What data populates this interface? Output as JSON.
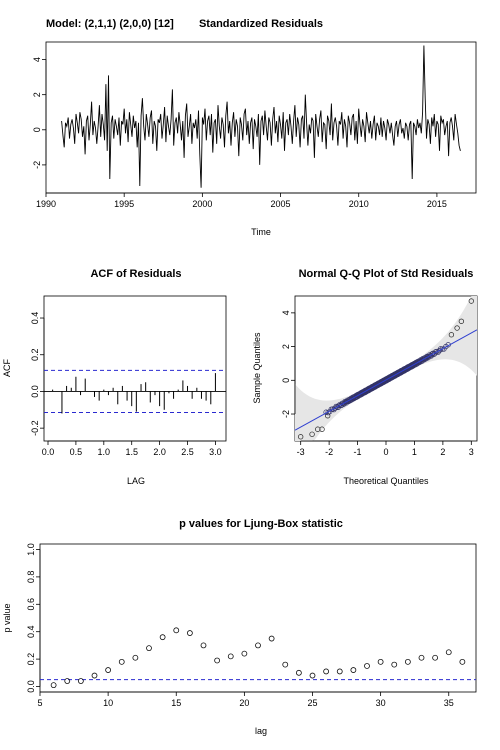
{
  "chart_data": [
    {
      "type": "line",
      "title": "Standardized Residuals",
      "model_label": "Model: (2,1,1) (2,0,0) [12]",
      "xlabel": "Time",
      "ylabel": "",
      "xlim": [
        1990,
        2017.5
      ],
      "ylim": [
        -3.6,
        5.0
      ],
      "x_ticks": [
        1990,
        1995,
        2000,
        2005,
        2010,
        2015
      ],
      "y_ticks": [
        -2,
        0,
        2,
        4
      ],
      "series": [
        {
          "x_start": 1991.0,
          "x_step": 0.083333,
          "values": [
            0.5,
            -0.3,
            -1.0,
            0.4,
            0.2,
            0.7,
            -0.5,
            0.3,
            0.6,
            0.1,
            -0.8,
            0.9,
            0.4,
            -0.2,
            1.0,
            0.6,
            -0.4,
            0.2,
            -1.4,
            0.5,
            0.8,
            -0.6,
            0.3,
            1.6,
            -0.3,
            0.5,
            0.1,
            -0.8,
            0.2,
            1.4,
            -0.4,
            0.9,
            0.3,
            -0.6,
            2.6,
            -1.2,
            3.1,
            -2.8,
            0.4,
            0.8,
            -0.5,
            0.6,
            0.2,
            -0.3,
            0.7,
            -0.9,
            0.5,
            0.3,
            1.2,
            -0.2,
            0.6,
            -0.7,
            1.0,
            0.3,
            -0.4,
            0.8,
            0.1,
            0.5,
            -1.0,
            0.4,
            -3.2,
            0.8,
            1.8,
            0.2,
            -0.6,
            0.9,
            0.3,
            -0.4,
            0.7,
            1.1,
            -0.8,
            0.5,
            0.2,
            -1.2,
            0.6,
            0.4,
            0.9,
            -0.5,
            0.3,
            1.3,
            -0.7,
            0.8,
            0.2,
            -0.3,
            0.6,
            2.3,
            -0.9,
            0.4,
            0.7,
            -0.2,
            1.0,
            0.3,
            -0.6,
            0.5,
            -1.6,
            0.8,
            1.5,
            -0.4,
            0.2,
            0.9,
            -0.8,
            0.4,
            0.1,
            0.6,
            -0.5,
            1.1,
            -1.4,
            -3.3,
            0.7,
            0.3,
            1.2,
            -0.6,
            0.5,
            0.8,
            -0.3,
            0.9,
            -1.3,
            0.4,
            0.6,
            -0.8,
            1.4,
            0.2,
            -0.5,
            0.7,
            0.3,
            -1.0,
            0.8,
            1.6,
            -0.2,
            0.5,
            -0.9,
            0.4,
            1.0,
            -0.4,
            0.6,
            0.2,
            -1.5,
            0.7,
            0.3,
            -0.6,
            0.9,
            1.2,
            -0.3,
            0.5,
            -0.8,
            0.4,
            0.7,
            -1.1,
            0.6,
            0.2,
            -0.4,
            0.9,
            -2.0,
            0.5,
            0.8,
            -0.3,
            1.1,
            0.2,
            -0.6,
            0.7,
            0.4,
            -0.9,
            0.6,
            1.3,
            -0.2,
            0.5,
            -0.7,
            0.8,
            0.3,
            -0.5,
            1.0,
            -1.2,
            0.4,
            0.6,
            -0.3,
            0.9,
            0.2,
            -0.8,
            0.5,
            1.4,
            -0.4,
            0.7,
            0.3,
            -1.0,
            0.6,
            0.8,
            -0.5,
            2.0,
            0.4,
            -0.9,
            0.3,
            -0.2,
            0.7,
            0.5,
            -1.6,
            0.9,
            0.2,
            -0.4,
            0.6,
            1.1,
            -0.7,
            0.4,
            0.3,
            -1.1,
            0.8,
            0.5,
            -0.3,
            1.5,
            -0.6,
            0.4,
            0.7,
            0.2,
            -0.9,
            0.5,
            0.3,
            1.0,
            -0.5,
            0.6,
            0.2,
            -1.0,
            0.8,
            0.4,
            -0.3,
            0.7,
            0.9,
            -0.6,
            0.5,
            -0.8,
            1.2,
            0.3,
            -0.4,
            0.6,
            0.2,
            -0.7,
            1.0,
            0.4,
            -0.2,
            0.5,
            -0.5,
            0.3,
            0.8,
            -0.6,
            0.4,
            0.2,
            -0.3,
            0.7,
            -0.4,
            0.5,
            0.1,
            -0.6,
            0.6,
            0.3,
            -0.2,
            0.4,
            -0.3,
            -0.9,
            0.2,
            0.5,
            -0.4,
            0.3,
            0.6,
            -0.2,
            0.1,
            -0.5,
            0.4,
            0.2,
            -0.6,
            0.3,
            0.5,
            -2.8,
            0.4,
            0.2,
            -0.3,
            0.6,
            0.1,
            0.4,
            -0.2,
            1.0,
            4.8,
            1.8,
            -0.5,
            0.6,
            0.3,
            -0.8,
            0.7,
            0.2,
            0.9,
            -0.4,
            0.5,
            0.3,
            -1.2,
            0.8,
            0.4,
            0.6,
            -0.3,
            0.2,
            0.5,
            -1.5,
            0.4,
            0.7,
            0.2,
            -0.6,
            0.9,
            0.3,
            -0.2,
            -0.9,
            -1.2
          ]
        }
      ]
    },
    {
      "type": "bar",
      "title": "ACF of Residuals",
      "xlabel": "LAG",
      "ylabel": "ACF",
      "xlim": [
        0.0,
        3.1
      ],
      "ylim": [
        -0.27,
        0.52
      ],
      "x_ticks": [
        0.0,
        0.5,
        1.0,
        1.5,
        2.0,
        2.5,
        3.0
      ],
      "y_ticks": [
        -0.2,
        0.0,
        0.2,
        0.4
      ],
      "confidence_band": 0.115,
      "lags": [
        0.083,
        0.167,
        0.25,
        0.333,
        0.417,
        0.5,
        0.583,
        0.667,
        0.75,
        0.833,
        0.917,
        1.0,
        1.083,
        1.167,
        1.25,
        1.333,
        1.417,
        1.5,
        1.583,
        1.667,
        1.75,
        1.833,
        1.917,
        2.0,
        2.083,
        2.167,
        2.25,
        2.333,
        2.417,
        2.5,
        2.583,
        2.667,
        2.75,
        2.833,
        2.917,
        3.0
      ],
      "values": [
        0.01,
        0.0,
        -0.12,
        0.03,
        0.02,
        0.08,
        -0.02,
        0.07,
        0.0,
        -0.03,
        -0.05,
        0.01,
        -0.02,
        0.02,
        -0.07,
        0.03,
        -0.05,
        -0.08,
        -0.11,
        0.04,
        0.05,
        -0.06,
        -0.02,
        -0.08,
        -0.1,
        -0.01,
        -0.04,
        0.01,
        0.06,
        0.03,
        -0.04,
        0.02,
        -0.04,
        -0.05,
        -0.07,
        0.1
      ]
    },
    {
      "type": "scatter",
      "title": "Normal Q-Q Plot of Std Residuals",
      "xlabel": "Theoretical Quantiles",
      "ylabel": "Sample Quantiles",
      "xlim": [
        -3.2,
        3.2
      ],
      "ylim": [
        -3.6,
        5.0
      ],
      "x_ticks": [
        -3,
        -2,
        -1,
        0,
        1,
        2,
        3
      ],
      "y_ticks": [
        -2,
        0,
        2,
        4
      ],
      "reference_line": {
        "intercept": 0.02,
        "slope": 0.93
      },
      "n_points": 313,
      "extreme_points": [
        [
          -3.0,
          -3.35
        ],
        [
          -2.6,
          -3.2
        ],
        [
          -2.4,
          -2.9
        ],
        [
          -2.25,
          -2.9
        ],
        [
          -2.05,
          -2.1
        ],
        [
          2.3,
          2.7
        ],
        [
          2.5,
          3.1
        ],
        [
          2.65,
          3.5
        ],
        [
          3.0,
          4.7
        ]
      ],
      "band_color": "#e6e6e6",
      "line_color": "#2f3fd0",
      "point_color": "#333366"
    },
    {
      "type": "scatter",
      "title": "p values for Ljung-Box statistic",
      "xlabel": "lag",
      "ylabel": "p value",
      "xlim": [
        5,
        37
      ],
      "ylim": [
        -0.04,
        1.04
      ],
      "x_ticks": [
        5,
        10,
        15,
        20,
        25,
        30,
        35
      ],
      "y_ticks": [
        0.0,
        0.2,
        0.4,
        0.6,
        0.8,
        1.0
      ],
      "threshold": 0.05,
      "x": [
        6,
        7,
        8,
        9,
        10,
        11,
        12,
        13,
        14,
        15,
        16,
        17,
        18,
        19,
        20,
        21,
        22,
        23,
        24,
        25,
        26,
        27,
        28,
        29,
        30,
        31,
        32,
        33,
        34,
        35,
        36
      ],
      "values": [
        0.01,
        0.04,
        0.04,
        0.08,
        0.12,
        0.18,
        0.21,
        0.28,
        0.36,
        0.41,
        0.39,
        0.3,
        0.19,
        0.22,
        0.24,
        0.3,
        0.35,
        0.16,
        0.1,
        0.08,
        0.11,
        0.11,
        0.12,
        0.15,
        0.18,
        0.16,
        0.18,
        0.21,
        0.21,
        0.25,
        0.18
      ]
    }
  ]
}
